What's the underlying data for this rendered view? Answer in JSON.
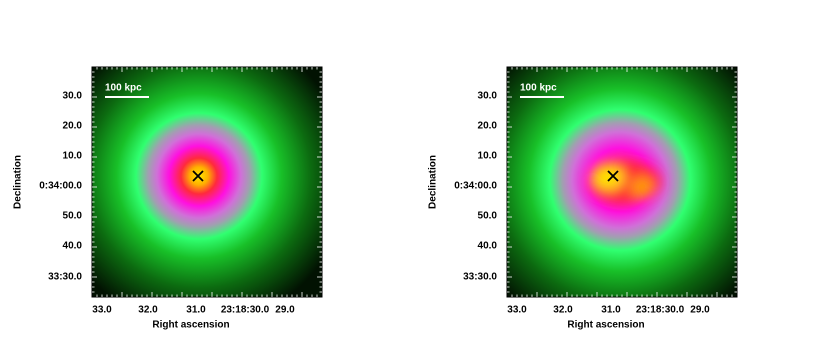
{
  "panels": [
    {
      "scale_label": "100 kpc",
      "x_label": "Right ascension",
      "y_label": "Declination",
      "x_ticks": [
        "33.0",
        "32.0",
        "31.0",
        "23:18:30.0",
        "29.0"
      ],
      "y_ticks": [
        "30.0",
        "20.0",
        "10.0",
        "0:34:00.0",
        "50.0",
        "40.0",
        "33:30.0"
      ]
    },
    {
      "scale_label": "100 kpc",
      "x_label": "Right ascension",
      "y_label": "Declination",
      "x_ticks": [
        "33.0",
        "32.0",
        "31.0",
        "23:18:30.0",
        "29.0"
      ],
      "y_ticks": [
        "30.0",
        "20.0",
        "10.0",
        "0:34:00.0",
        "50.0",
        "40.0",
        "33:30.0"
      ]
    }
  ]
}
